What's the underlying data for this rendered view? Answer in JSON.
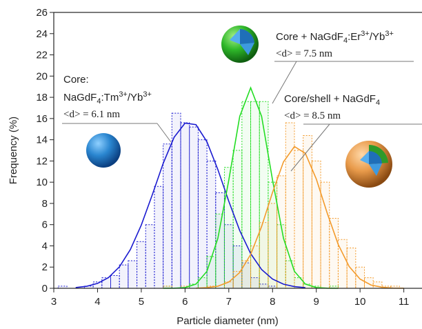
{
  "chart_data": {
    "type": "histogram",
    "x_label": "Particle diameter (nm)",
    "y_label": "Frequency (%)",
    "xlim": [
      3,
      11.4
    ],
    "ylim": [
      0,
      26
    ],
    "xticks": [
      3,
      4,
      5,
      6,
      7,
      8,
      9,
      10,
      11
    ],
    "yticks": [
      0,
      2,
      4,
      6,
      8,
      10,
      12,
      14,
      16,
      18,
      20,
      22,
      24,
      26
    ],
    "bins": [
      3.1,
      3.3,
      3.5,
      3.7,
      3.9,
      4.1,
      4.3,
      4.5,
      4.7,
      4.9,
      5.1,
      5.3,
      5.5,
      5.7,
      5.9,
      6.1,
      6.3,
      6.5,
      6.7,
      6.9,
      7.1,
      7.3,
      7.5,
      7.7,
      7.9,
      8.1,
      8.3,
      8.5,
      8.7,
      8.9,
      9.1,
      9.3,
      9.5,
      9.7,
      9.9,
      10.1,
      10.3,
      10.5,
      10.7,
      10.9,
      11.1,
      11.3
    ],
    "series": [
      {
        "color": "#1a1ad0",
        "values": [
          0.2,
          0,
          0,
          0.2,
          0.6,
          1.0,
          1.2,
          2.2,
          2.6,
          4.4,
          6.0,
          9.6,
          13.6,
          16.5,
          15.6,
          15.2,
          14.0,
          12.0,
          9.0,
          6.0,
          4.0,
          2.4,
          1.0,
          0.4,
          0.2,
          0,
          0,
          0,
          0,
          0,
          0,
          0,
          0,
          0,
          0,
          0,
          0,
          0,
          0,
          0,
          0
        ],
        "fit_x": [
          3.5,
          3.75,
          4.0,
          4.25,
          4.5,
          4.75,
          5.0,
          5.25,
          5.5,
          5.75,
          6.0,
          6.25,
          6.5,
          6.75,
          7.0,
          7.25,
          7.5,
          7.75,
          8.0,
          8.25,
          8.5,
          8.75
        ],
        "fit_values": [
          0.07,
          0.19,
          0.46,
          1.01,
          2.02,
          3.65,
          5.96,
          8.8,
          11.77,
          14.23,
          15.57,
          15.42,
          13.81,
          11.19,
          8.2,
          5.44,
          3.27,
          1.77,
          0.87,
          0.39,
          0.16,
          0.06
        ],
        "label": {
          "line1": "Core:",
          "line2": [
            "NaGdF",
            "4",
            ":Tm",
            "3+",
            "/Yb",
            "3+"
          ],
          "line3": "<d> = 6.1 nm"
        }
      },
      {
        "color": "#22dd22",
        "values": [
          0,
          0,
          0,
          0,
          0,
          0,
          0,
          0,
          0,
          0,
          0,
          0,
          0.2,
          0,
          0,
          0.4,
          1.0,
          3.0,
          7.0,
          11.4,
          13.0,
          17.6,
          17.6,
          17.6,
          10.0,
          6.0,
          2.6,
          1.0,
          0.4,
          0.2,
          0,
          0.2,
          0,
          0,
          0,
          0,
          0,
          0,
          0,
          0,
          0
        ],
        "fit_x": [
          5.5,
          5.75,
          6.0,
          6.25,
          6.5,
          6.75,
          7.0,
          7.25,
          7.5,
          7.75,
          8.0,
          8.25,
          8.5,
          8.75,
          9.0,
          9.25,
          9.5
        ],
        "fit_values": [
          0,
          0.01,
          0.07,
          0.4,
          1.6,
          4.71,
          10.2,
          16.2,
          18.9,
          16.2,
          10.2,
          4.71,
          1.6,
          0.4,
          0.07,
          0.01,
          0
        ],
        "label": {
          "line2": [
            "Core + NaGdF",
            "4",
            ":Er",
            "3+",
            "/Yb",
            "3+"
          ],
          "line3": "<d> = 7.5 nm"
        }
      },
      {
        "color": "#f39a2a",
        "values": [
          0,
          0,
          0,
          0,
          0,
          0,
          0,
          0,
          0,
          0,
          0,
          0,
          0.2,
          0,
          0.2,
          0,
          0,
          0.2,
          0,
          0.6,
          1.6,
          2.6,
          4.0,
          6.2,
          8.0,
          10.6,
          15.6,
          13.0,
          14.4,
          12.0,
          10.0,
          6.6,
          4.6,
          3.8,
          2.0,
          1.0,
          0.6,
          0.2,
          0.2,
          0,
          0
        ],
        "fit_x": [
          6.25,
          6.5,
          6.75,
          7.0,
          7.25,
          7.5,
          7.75,
          8.0,
          8.25,
          8.5,
          8.75,
          9.0,
          9.25,
          9.5,
          9.75,
          10.0,
          10.25,
          10.5,
          10.75,
          11.0
        ],
        "fit_values": [
          0.01,
          0.06,
          0.2,
          0.59,
          1.49,
          3.19,
          5.83,
          9.04,
          11.92,
          13.36,
          12.72,
          10.3,
          7.08,
          4.14,
          2.06,
          0.87,
          0.31,
          0.1,
          0.02,
          0.01
        ],
        "label": {
          "line2": [
            "Core/shell + NaGdF",
            "4"
          ],
          "line3": "<d> = 8.5 nm"
        }
      }
    ]
  }
}
